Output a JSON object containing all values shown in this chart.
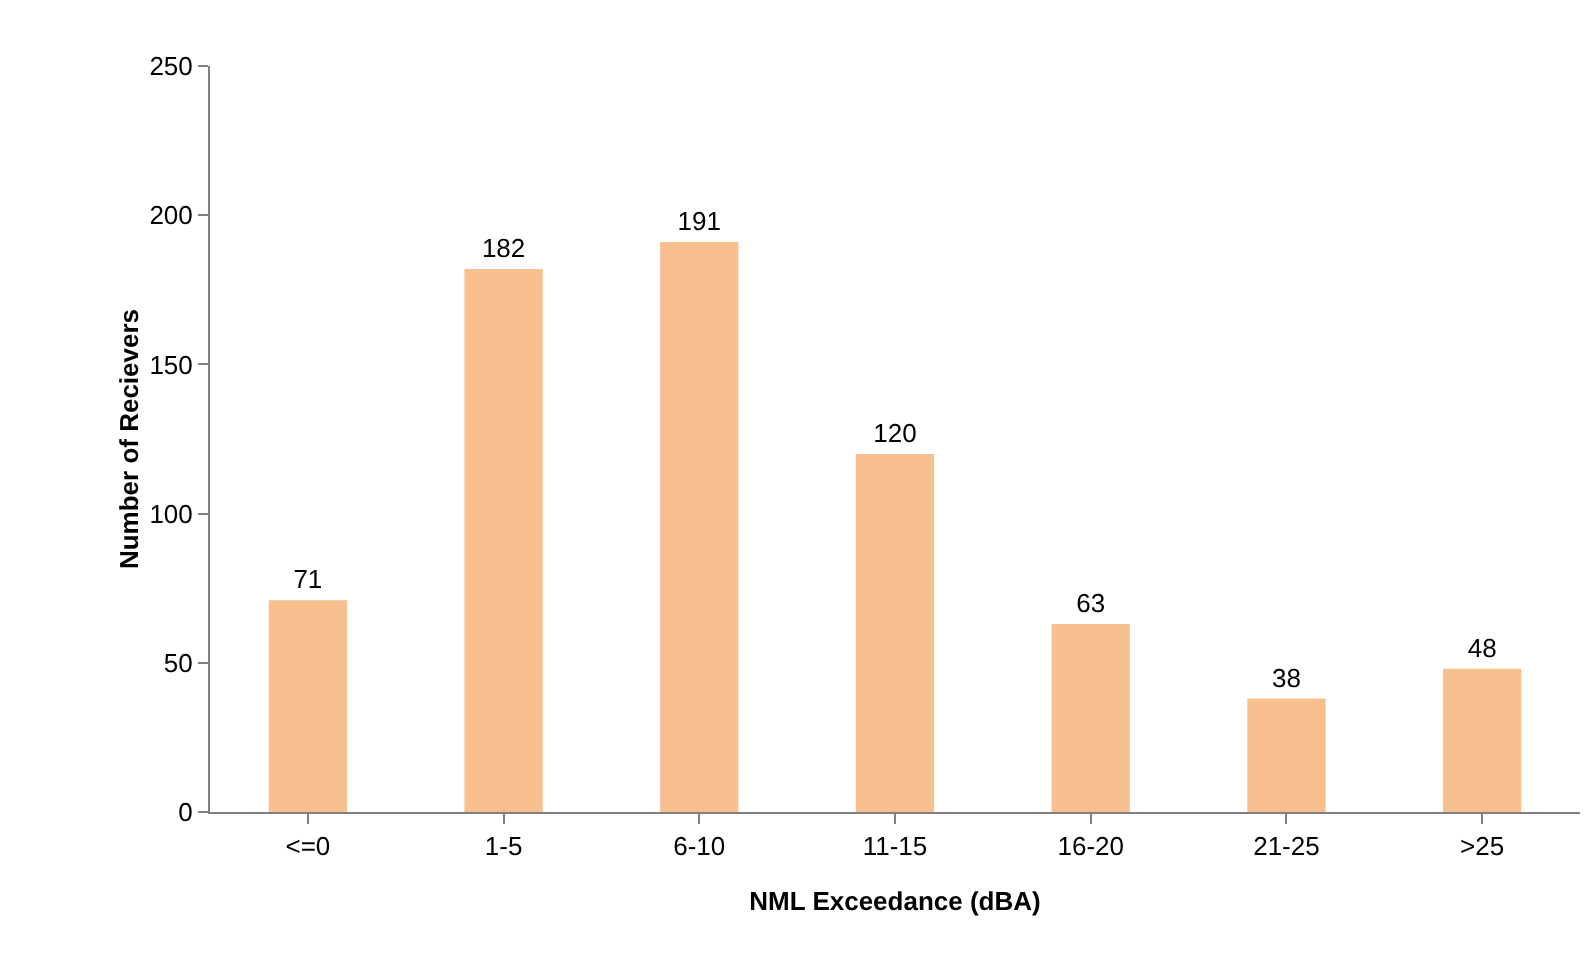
{
  "chart_data": {
    "type": "bar",
    "xlabel": "NML Exceedance (dBA)",
    "ylabel": "Number of Recievers",
    "categories": [
      "<=0",
      "1-5",
      "6-10",
      "11-15",
      "16-20",
      "21-25",
      ">25"
    ],
    "values": [
      71,
      182,
      191,
      120,
      63,
      38,
      48
    ],
    "color": "#f9c08f",
    "ylim": [
      0,
      250
    ],
    "yticks": [
      0,
      50,
      100,
      150,
      200,
      250
    ],
    "grid": false,
    "legend": false,
    "data_labels": true
  }
}
